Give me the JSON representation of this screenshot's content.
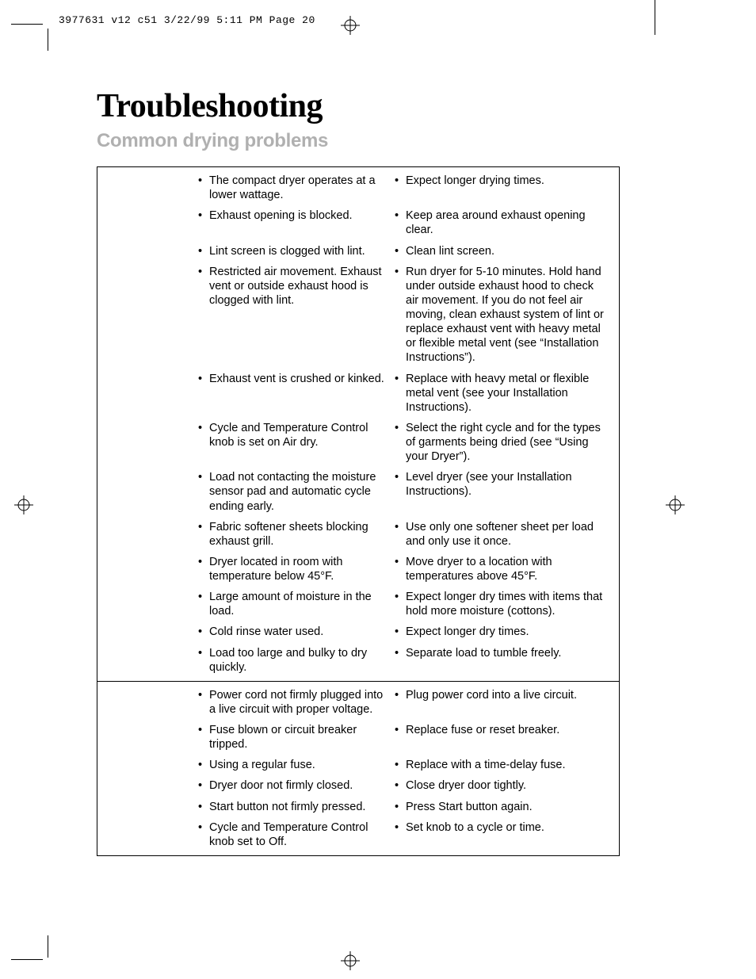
{
  "slug": "3977631 v12 c51  3/22/99 5:11 PM  Page 20",
  "title": "Troubleshooting",
  "subtitle": "Common drying problems",
  "colors": {
    "title": "#000000",
    "subtitle": "#b0b0b0",
    "text": "#000000",
    "border": "#000000",
    "background": "#ffffff"
  },
  "typography": {
    "title_fontsize": 42,
    "title_weight": 900,
    "subtitle_fontsize": 24,
    "subtitle_weight": 700,
    "body_fontsize": 14.5,
    "slug_font": "monospace",
    "slug_fontsize": 13
  },
  "sections": [
    {
      "rows": [
        {
          "cause": "The compact dryer operates at a lower wattage.",
          "solution": "Expect longer drying times."
        },
        {
          "cause": "Exhaust opening is blocked.",
          "solution": "Keep area around exhaust opening clear."
        },
        {
          "cause": "Lint screen is clogged with lint.",
          "solution": "Clean lint screen."
        },
        {
          "cause": "Restricted air movement. Exhaust vent or outside exhaust hood is clogged with lint.",
          "solution": "Run dryer for 5-10 minutes. Hold hand under outside exhaust hood to check air movement. If you do not feel air moving, clean exhaust system of lint or replace exhaust vent with heavy metal or flexible metal vent (see “Installation Instructions”)."
        },
        {
          "cause": "Exhaust vent is crushed or kinked.",
          "solution": "Replace with heavy metal or flexible metal vent (see your Installation Instructions)."
        },
        {
          "cause": "Cycle and Temperature Control knob is set on Air dry.",
          "solution": "Select the right cycle and for the types of garments being dried (see “Using your Dryer”)."
        },
        {
          "cause": "Load not contacting the moisture sensor pad and automatic cycle ending early.",
          "solution": "Level dryer (see your Installation Instructions)."
        },
        {
          "cause": "Fabric softener sheets blocking exhaust grill.",
          "solution": "Use only one softener sheet per load and only use it once."
        },
        {
          "cause": "Dryer located in room with temperature below 45°F.",
          "solution": "Move dryer to a location with temperatures above 45°F."
        },
        {
          "cause": "Large amount of moisture in the load.",
          "solution": "Expect longer dry times with items that hold more moisture (cottons)."
        },
        {
          "cause": "Cold rinse water used.",
          "solution": "Expect longer dry times."
        },
        {
          "cause": "Load too large and bulky to dry quickly.",
          "solution": "Separate load to tumble freely."
        }
      ]
    },
    {
      "rows": [
        {
          "cause": "Power cord not firmly plugged into a live circuit with proper voltage.",
          "solution": "Plug power cord into a live circuit."
        },
        {
          "cause": "Fuse blown or circuit breaker tripped.",
          "solution": "Replace fuse or reset breaker."
        },
        {
          "cause": "Using a regular fuse.",
          "solution": "Replace with a time-delay fuse."
        },
        {
          "cause": "Dryer door not firmly closed.",
          "solution": "Close dryer door tightly."
        },
        {
          "cause": "Start button not firmly pressed.",
          "solution": "Press Start button again."
        },
        {
          "cause": "Cycle and Temperature Control knob set to Off.",
          "solution": "Set knob to a cycle or time."
        }
      ]
    }
  ]
}
